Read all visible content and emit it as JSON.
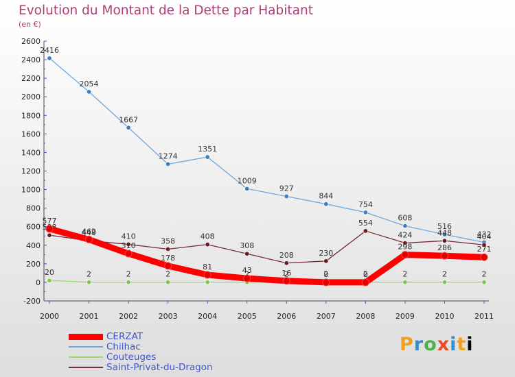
{
  "title": "Evolution du Montant de la Dette par Habitant",
  "subtitle": "(en €)",
  "logo": [
    "P",
    "r",
    "o",
    "x",
    "i",
    "t",
    "i"
  ],
  "chart_data": {
    "type": "line",
    "x": [
      "2000",
      "2001",
      "2002",
      "2003",
      "2004",
      "2005",
      "2006",
      "2007",
      "2008",
      "2009",
      "2010",
      "2011"
    ],
    "ylim": [
      -200,
      2600
    ],
    "yticks": [
      -200,
      0,
      200,
      400,
      600,
      800,
      1000,
      1200,
      1400,
      1600,
      1800,
      2000,
      2200,
      2400,
      2600
    ],
    "grid": false,
    "legend_position": "bottom-left",
    "series": [
      {
        "name": "Chilhac",
        "color": "#6fa8dc",
        "marker": "#3d7fc0",
        "values": [
          2416,
          2054,
          1667,
          1274,
          1351,
          1009,
          927,
          844,
          754,
          608,
          516,
          432
        ]
      },
      {
        "name": "Saint-Privat-du-Dragon",
        "color": "#7a2a35",
        "marker": "#6a1a22",
        "values": [
          508,
          449,
          410,
          358,
          408,
          308,
          208,
          230,
          554,
          424,
          448,
          404
        ]
      },
      {
        "name": "Couteuges",
        "color": "#9ad86a",
        "marker": "#7cc94a",
        "values": [
          20,
          2,
          2,
          2,
          2,
          2,
          2,
          2,
          2,
          2,
          2,
          2
        ]
      },
      {
        "name": "CERZAT",
        "color": "#ff0000",
        "marker": "#e00000",
        "bold": true,
        "values": [
          577,
          462,
          310,
          178,
          81,
          43,
          16,
          0,
          0,
          298,
          286,
          271
        ]
      }
    ],
    "legend_order": [
      "CERZAT",
      "Chilhac",
      "Couteuges",
      "Saint-Privat-du-Dragon"
    ]
  }
}
